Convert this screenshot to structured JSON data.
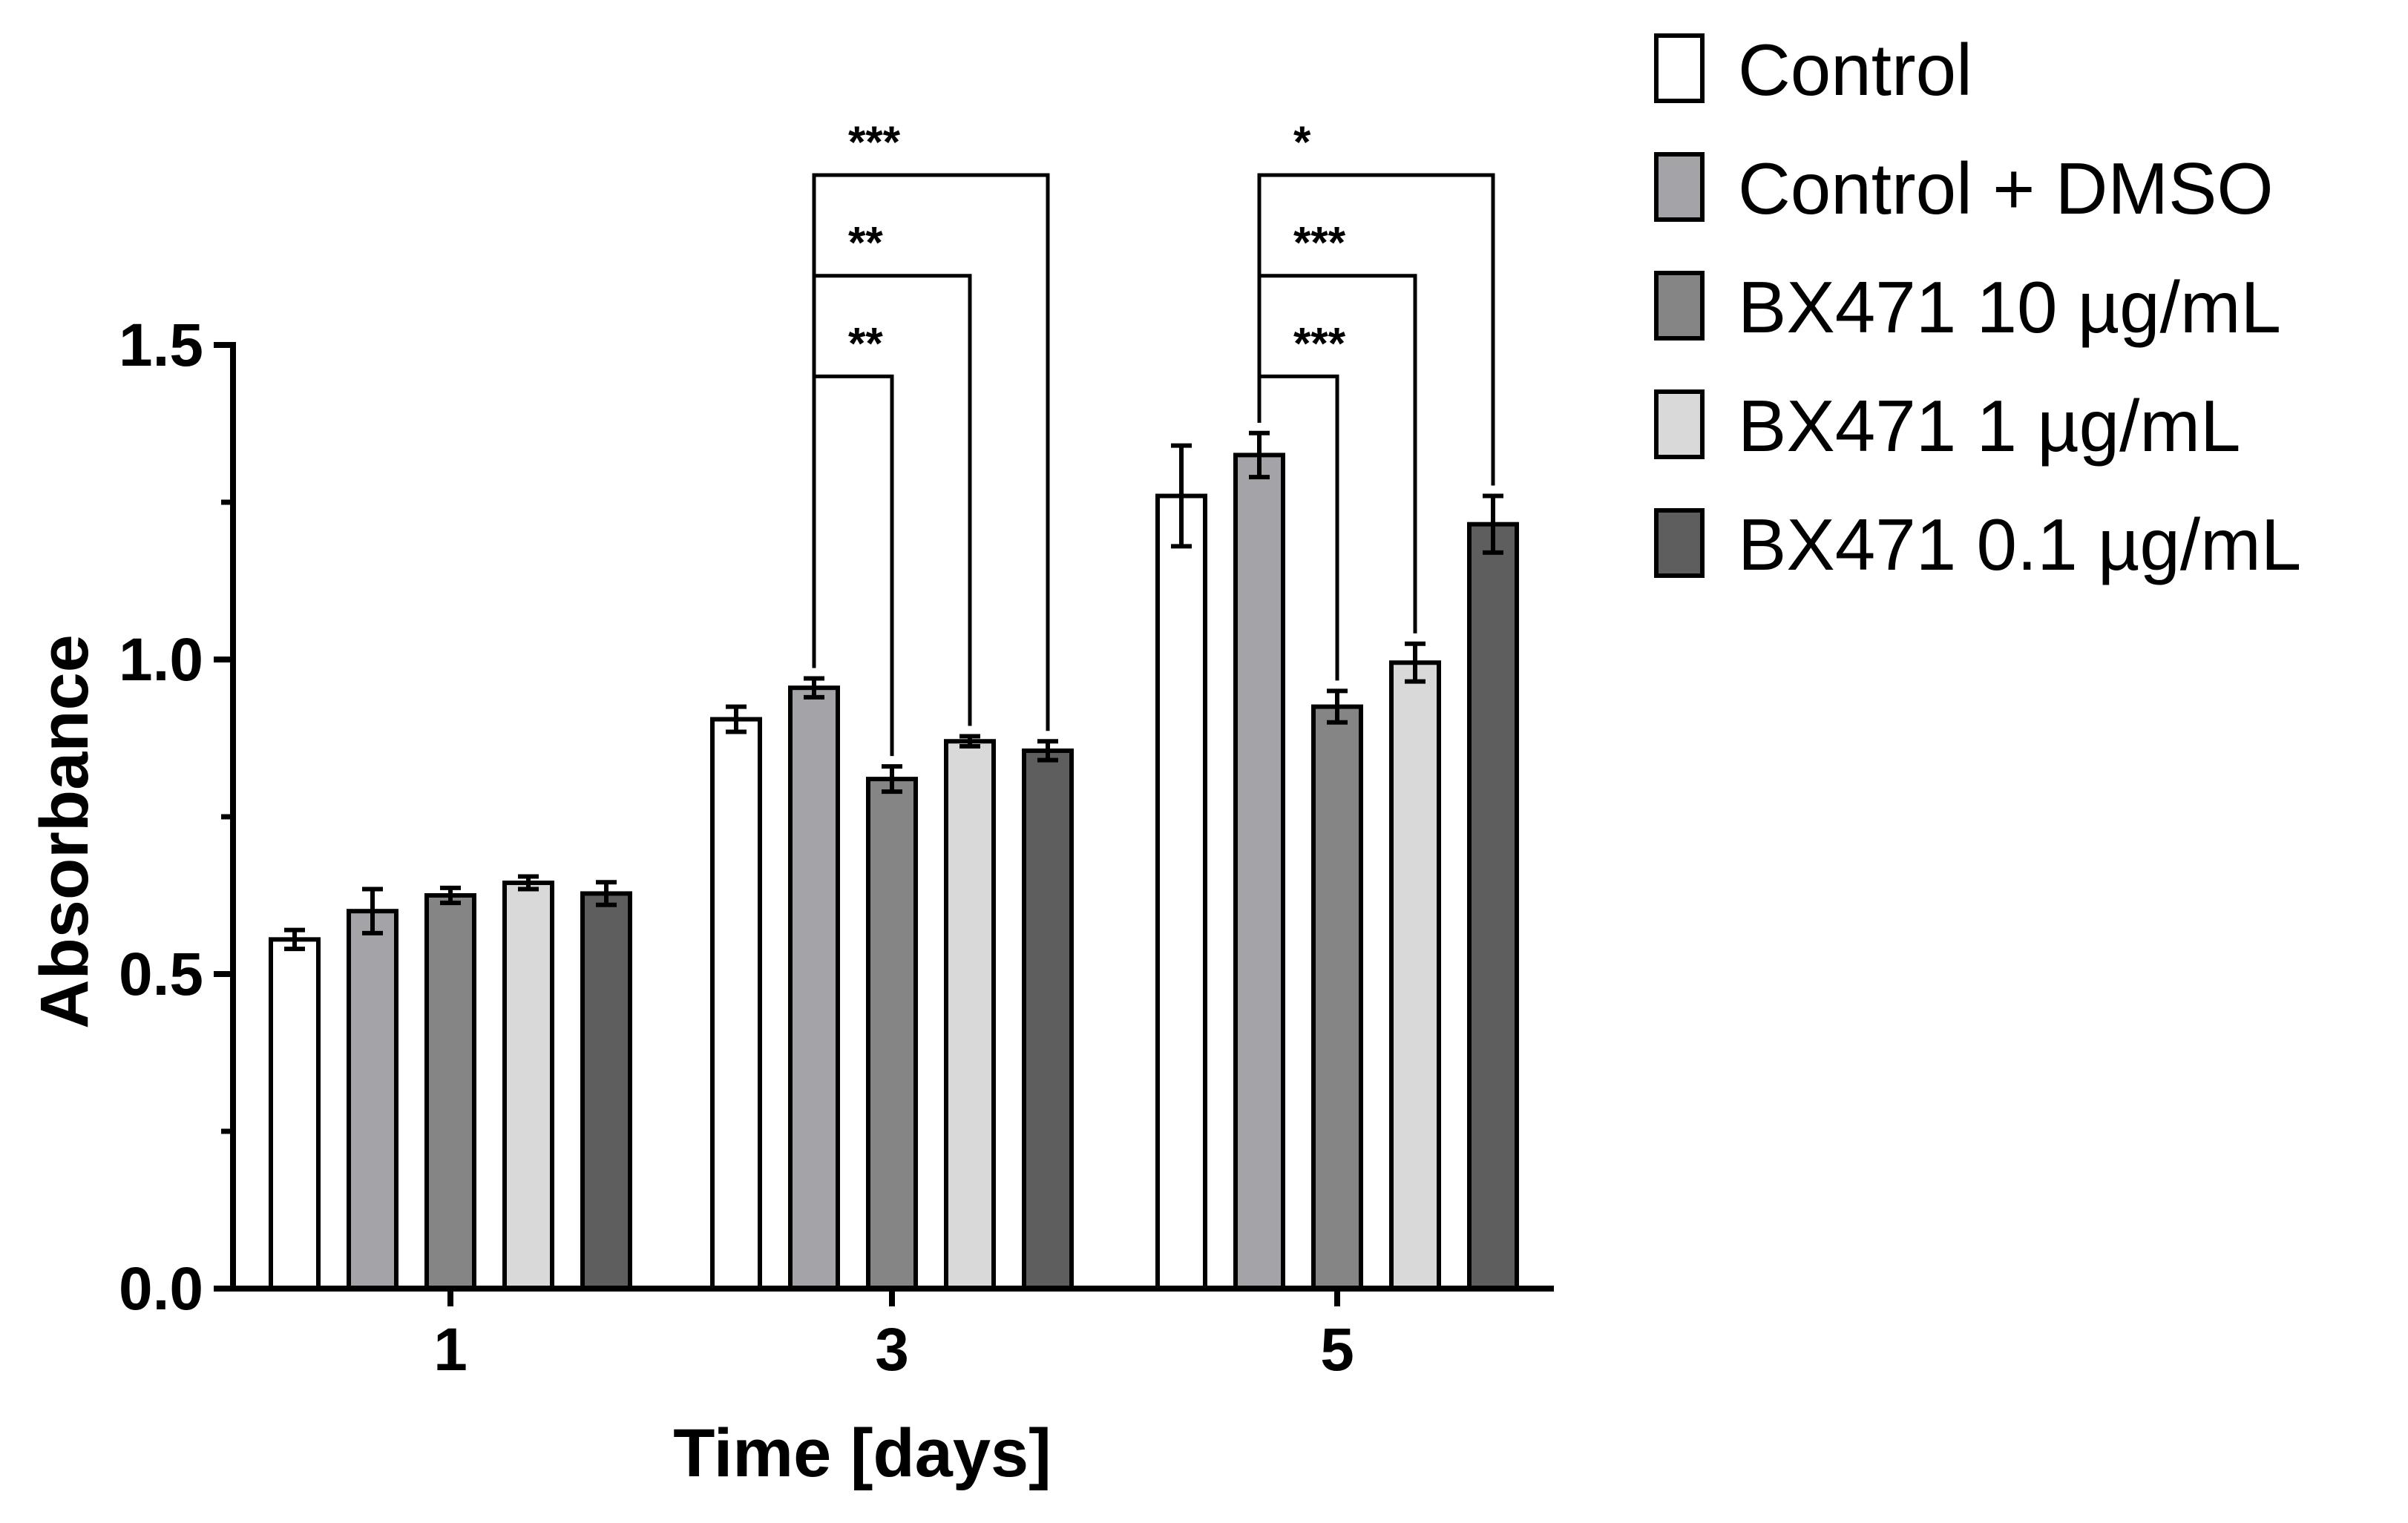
{
  "chart_data": {
    "type": "bar",
    "title": "",
    "xlabel": "Time [days]",
    "ylabel": "Absorbance",
    "ylim": [
      0,
      1.5
    ],
    "yticks": [
      "0.0",
      "0.5",
      "1.0",
      "1.5"
    ],
    "yminor": [
      0.25,
      0.75,
      1.25
    ],
    "categories": [
      "1",
      "3",
      "5"
    ],
    "series": [
      {
        "name": "Control",
        "color": "#ffffff",
        "values": [
          0.555,
          0.905,
          1.26
        ],
        "errors": [
          0.015,
          0.02,
          0.08
        ]
      },
      {
        "name": "Control + DMSO",
        "color": "#a4a3a8",
        "values": [
          0.6,
          0.955,
          1.325
        ],
        "errors": [
          0.035,
          0.015,
          0.035
        ]
      },
      {
        "name": "BX471 10 µg/mL",
        "color": "#858585",
        "values": [
          0.625,
          0.81,
          0.925
        ],
        "errors": [
          0.012,
          0.02,
          0.025
        ]
      },
      {
        "name": "BX471 1 µg/mL",
        "color": "#d9d9d9",
        "values": [
          0.645,
          0.87,
          0.995
        ],
        "errors": [
          0.01,
          0.008,
          0.03
        ]
      },
      {
        "name": "BX471 0.1 µg/mL",
        "color": "#5e5e5e",
        "values": [
          0.628,
          0.855,
          1.215
        ],
        "errors": [
          0.018,
          0.015,
          0.045
        ]
      }
    ],
    "legend_position": "top-right",
    "significance": [
      {
        "category": 1,
        "from": 1,
        "to": 2,
        "label": "**",
        "level": 1.45
      },
      {
        "category": 1,
        "from": 1,
        "to": 3,
        "label": "**",
        "level": 1.61
      },
      {
        "category": 1,
        "from": 1,
        "to": 4,
        "label": "***",
        "level": 1.77
      },
      {
        "category": 2,
        "from": 1,
        "to": 2,
        "label": "***",
        "level": 1.45
      },
      {
        "category": 2,
        "from": 1,
        "to": 3,
        "label": "***",
        "level": 1.61
      },
      {
        "category": 2,
        "from": 1,
        "to": 4,
        "label": "*",
        "level": 1.77
      }
    ]
  }
}
